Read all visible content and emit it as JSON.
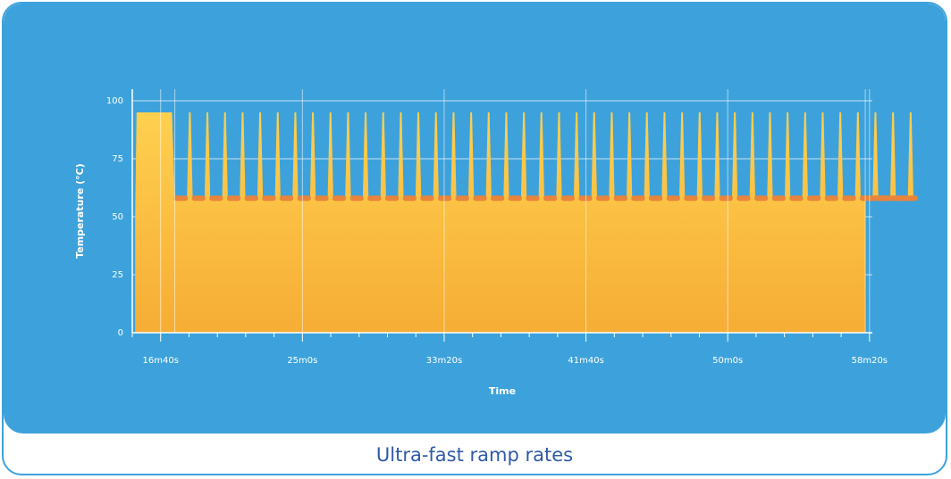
{
  "caption": "Ultra-fast ramp rates",
  "colors": {
    "panel": "#3da2db",
    "area_top": "#ffd04f",
    "area_bottom": "#f6ad35",
    "marker": "#e8843b",
    "grid": "#ffffff",
    "caption": "#2f5aa8"
  },
  "chart_data": {
    "type": "area",
    "title": "",
    "xlabel": "Time",
    "ylabel": "Temperature (°C)",
    "x_unit": "seconds",
    "xlim": [
      900,
      3510
    ],
    "ylim": [
      0,
      105
    ],
    "y_ticks": [
      0,
      25,
      50,
      75,
      100
    ],
    "x_ticks": [
      {
        "value": 1000,
        "label": "16m40s"
      },
      {
        "value": 1500,
        "label": "25m0s"
      },
      {
        "value": 2000,
        "label": "33m20s"
      },
      {
        "value": 2500,
        "label": "41m40s"
      },
      {
        "value": 3000,
        "label": "50m0s"
      },
      {
        "value": 3500,
        "label": "58m20s"
      }
    ],
    "grid": true,
    "initial_denaturation": {
      "start": 910,
      "end": 1040,
      "temperature": 95
    },
    "cycles": {
      "count": 42,
      "first_peak": 1103,
      "period": 62,
      "high_temperature": 95,
      "low_temperature": 58
    },
    "end_time": 3485
  }
}
